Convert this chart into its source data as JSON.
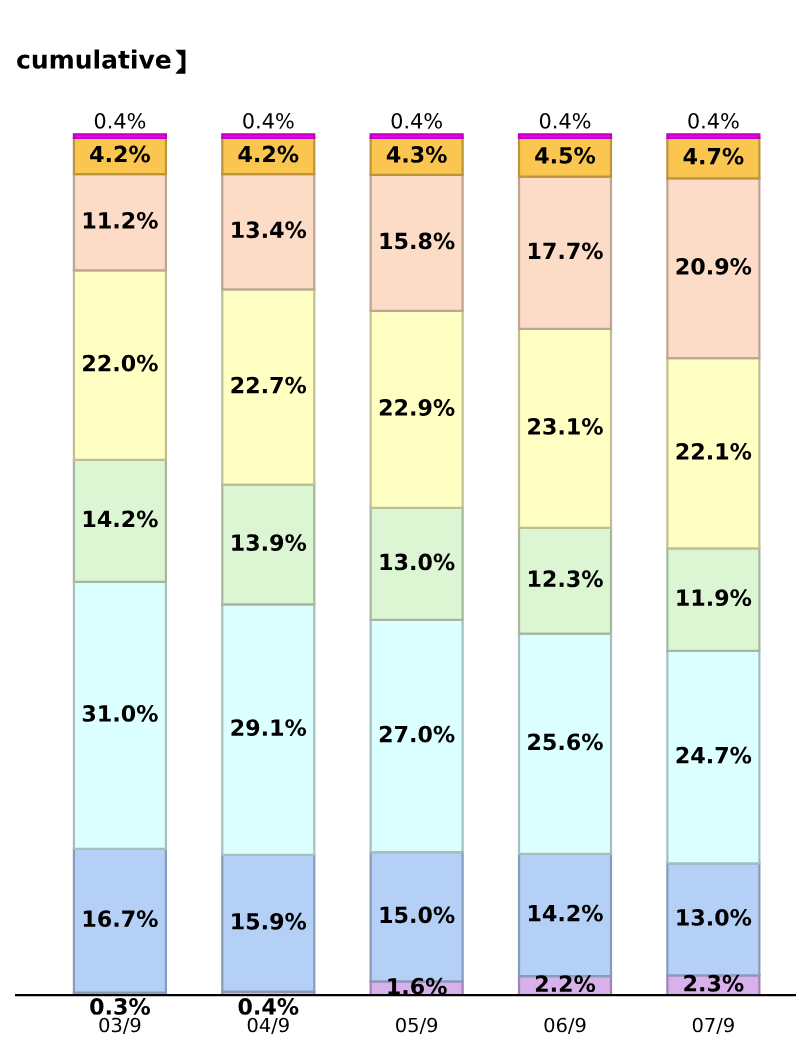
{
  "chart_data": {
    "type": "bar",
    "title": "cumulative",
    "stacked": true,
    "legend": false,
    "grid": false,
    "categories": [
      "03/9",
      "04/9",
      "05/9",
      "06/9",
      "07/9"
    ],
    "series": [
      {
        "color": "#d8b0ec",
        "values": [
          0.3,
          0.4,
          1.6,
          2.2,
          2.3
        ],
        "value_labels": [
          "0.3%",
          "0.4%",
          "1.6%",
          "2.2%",
          "2.3%"
        ]
      },
      {
        "color": "#b4d0f6",
        "values": [
          16.7,
          15.9,
          15.0,
          14.2,
          13.0
        ],
        "value_labels": [
          "16.7%",
          "15.9%",
          "15.0%",
          "14.2%",
          "13.0%"
        ]
      },
      {
        "color": "#dcffff",
        "values": [
          31.0,
          29.1,
          27.0,
          25.6,
          24.7
        ],
        "value_labels": [
          "31.0%",
          "29.1%",
          "27.0%",
          "25.6%",
          "24.7%"
        ]
      },
      {
        "color": "#dcf6d4",
        "values": [
          14.2,
          13.9,
          13.0,
          12.3,
          11.9
        ],
        "value_labels": [
          "14.2%",
          "13.9%",
          "13.0%",
          "12.3%",
          "11.9%"
        ]
      },
      {
        "color": "#ffffc4",
        "values": [
          22.0,
          22.7,
          22.9,
          23.1,
          22.1
        ],
        "value_labels": [
          "22.0%",
          "22.7%",
          "22.9%",
          "23.1%",
          "22.1%"
        ]
      },
      {
        "color": "#fcdcc6",
        "values": [
          11.2,
          13.4,
          15.8,
          17.7,
          20.9
        ],
        "value_labels": [
          "11.2%",
          "13.4%",
          "15.8%",
          "17.7%",
          "20.9%"
        ]
      },
      {
        "color": "#fbc650",
        "values": [
          4.2,
          4.2,
          4.3,
          4.5,
          4.7
        ],
        "value_labels": [
          "4.2%",
          "4.2%",
          "4.3%",
          "4.5%",
          "4.7%"
        ]
      },
      {
        "color": "#ff00ff",
        "values": [
          0.4,
          0.4,
          0.4,
          0.4,
          0.4
        ],
        "value_labels": [
          "0.4%",
          "0.4%",
          "0.4%",
          "0.4%",
          "0.4%"
        ]
      }
    ]
  }
}
